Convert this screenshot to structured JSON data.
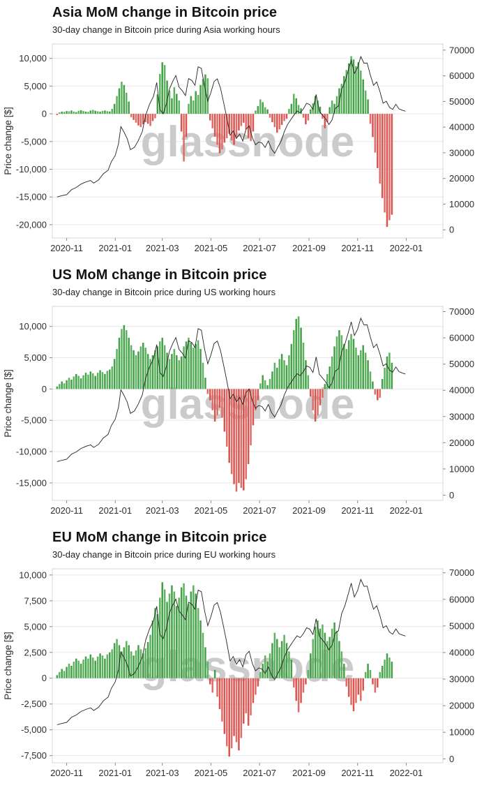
{
  "watermark": {
    "text": "glassnode",
    "color": "#cbcbcb"
  },
  "style": {
    "positive_bar": "#43a047",
    "positive_bar_alt": "#5cb35f",
    "negative_bar": "#d9534f",
    "negative_bar_alt": "#e06b67",
    "price_line": "#222222",
    "grid": "#e7e7e7",
    "plot_border": "#d4d4d4",
    "tick_mark": "#8a8a8a",
    "tick_text": "#2e2e2e",
    "background": "#ffffff"
  },
  "x_axis": {
    "domain": [
      0,
      490
    ],
    "tick_t": [
      18,
      79,
      138,
      199,
      260,
      322,
      383,
      444
    ],
    "tick_labels": [
      "2020-11",
      "2021-01",
      "2021-03",
      "2021-05",
      "2021-07",
      "2021-09",
      "2021-11",
      "2022-01"
    ]
  },
  "price_line": {
    "name": "Bitcoin price [$] (right axis, shared by all three charts)",
    "points": [
      [
        6,
        12800
      ],
      [
        12,
        13300
      ],
      [
        18,
        13700
      ],
      [
        24,
        15600
      ],
      [
        30,
        16500
      ],
      [
        36,
        17800
      ],
      [
        42,
        18600
      ],
      [
        48,
        19200
      ],
      [
        52,
        18200
      ],
      [
        58,
        19400
      ],
      [
        64,
        21800
      ],
      [
        70,
        23200
      ],
      [
        74,
        26500
      ],
      [
        79,
        29000
      ],
      [
        83,
        33500
      ],
      [
        86,
        40200
      ],
      [
        90,
        38000
      ],
      [
        94,
        35500
      ],
      [
        98,
        31200
      ],
      [
        103,
        32100
      ],
      [
        108,
        34800
      ],
      [
        113,
        38300
      ],
      [
        117,
        44500
      ],
      [
        122,
        48900
      ],
      [
        127,
        52000
      ],
      [
        131,
        57400
      ],
      [
        135,
        46800
      ],
      [
        139,
        45200
      ],
      [
        143,
        48900
      ],
      [
        147,
        54900
      ],
      [
        151,
        57800
      ],
      [
        155,
        60100
      ],
      [
        159,
        55600
      ],
      [
        163,
        54200
      ],
      [
        167,
        52300
      ],
      [
        171,
        58900
      ],
      [
        175,
        58200
      ],
      [
        179,
        56300
      ],
      [
        183,
        63500
      ],
      [
        187,
        62900
      ],
      [
        191,
        55800
      ],
      [
        195,
        50100
      ],
      [
        199,
        53500
      ],
      [
        203,
        57800
      ],
      [
        207,
        58800
      ],
      [
        211,
        55200
      ],
      [
        215,
        49500
      ],
      [
        219,
        43500
      ],
      [
        223,
        36800
      ],
      [
        227,
        38500
      ],
      [
        231,
        35600
      ],
      [
        235,
        37300
      ],
      [
        239,
        34600
      ],
      [
        243,
        39200
      ],
      [
        247,
        40500
      ],
      [
        251,
        35800
      ],
      [
        255,
        33100
      ],
      [
        259,
        34200
      ],
      [
        263,
        33800
      ],
      [
        267,
        32100
      ],
      [
        271,
        34600
      ],
      [
        275,
        31500
      ],
      [
        279,
        29800
      ],
      [
        283,
        32200
      ],
      [
        287,
        34500
      ],
      [
        291,
        38200
      ],
      [
        295,
        40900
      ],
      [
        299,
        42800
      ],
      [
        303,
        44600
      ],
      [
        307,
        46300
      ],
      [
        311,
        45600
      ],
      [
        315,
        47100
      ],
      [
        319,
        49300
      ],
      [
        323,
        48800
      ],
      [
        327,
        46800
      ],
      [
        331,
        52700
      ],
      [
        335,
        46100
      ],
      [
        339,
        44700
      ],
      [
        343,
        43200
      ],
      [
        347,
        41000
      ],
      [
        351,
        42800
      ],
      [
        355,
        47300
      ],
      [
        359,
        48200
      ],
      [
        363,
        54700
      ],
      [
        367,
        57500
      ],
      [
        371,
        61700
      ],
      [
        375,
        66100
      ],
      [
        379,
        60900
      ],
      [
        383,
        63300
      ],
      [
        387,
        67500
      ],
      [
        391,
        64900
      ],
      [
        395,
        65000
      ],
      [
        399,
        60300
      ],
      [
        403,
        56300
      ],
      [
        407,
        57600
      ],
      [
        411,
        53900
      ],
      [
        415,
        49300
      ],
      [
        419,
        50100
      ],
      [
        423,
        47700
      ],
      [
        427,
        46900
      ],
      [
        431,
        48900
      ],
      [
        435,
        47100
      ],
      [
        439,
        46600
      ],
      [
        443,
        46200
      ]
    ]
  },
  "chart_data": [
    {
      "type": "bar+line",
      "title": "Asia MoM change in Bitcoin price",
      "subtitle": "30-day change in Bitcoin price during Asia working hours",
      "ylabel": "Price change [$]",
      "bar_series_name": "30-day Bitcoin price change during Asia working hours",
      "line_series_name": "Bitcoin price (uses shared price_line.points)",
      "left_ticks": [
        10000,
        5000,
        0,
        -5000,
        -10000,
        -15000,
        -20000
      ],
      "left_tick_labels": [
        "10,000",
        "5,000",
        "0",
        "-5,000",
        "-10,000",
        "-15,000",
        "-20,000"
      ],
      "left_ylim": [
        -22400,
        12600
      ],
      "right_ticks": [
        70000,
        60000,
        50000,
        40000,
        30000,
        20000,
        10000,
        0
      ],
      "right_ylim": [
        -3200,
        72400
      ],
      "bars": {
        "t_start": 6,
        "t_step": 3,
        "values": [
          -200,
          250,
          400,
          350,
          500,
          450,
          600,
          400,
          300,
          550,
          650,
          500,
          400,
          350,
          600,
          700,
          550,
          450,
          380,
          520,
          600,
          480,
          420,
          900,
          1800,
          3200,
          4600,
          5800,
          5200,
          3800,
          2200,
          -600,
          -1100,
          -1600,
          -2100,
          -2400,
          -1900,
          -1500,
          -1800,
          -2200,
          -1300,
          -800,
          3500,
          7200,
          9300,
          8800,
          6000,
          4200,
          2800,
          4800,
          3600,
          2400,
          -3200,
          -8600,
          -4200,
          1800,
          3200,
          2400,
          4100,
          3400,
          5200,
          6300,
          7100,
          6400,
          -1200,
          -2600,
          -4100,
          -5600,
          -7100,
          -6400,
          -5200,
          -4400,
          -3600,
          -4800,
          -5600,
          -4200,
          -3000,
          -2200,
          -1600,
          -2800,
          -4400,
          -4900,
          -3200,
          600,
          1400,
          2600,
          2100,
          1200,
          800,
          -700,
          -1500,
          -2400,
          -3400,
          -2800,
          -2000,
          -1300,
          -900,
          900,
          1800,
          3600,
          2800,
          1600,
          1000,
          -700,
          -1900,
          -1200,
          800,
          1900,
          3200,
          2400,
          1300,
          -900,
          -2600,
          -1500,
          1200,
          2400,
          1800,
          3200,
          4600,
          5400,
          6800,
          7900,
          9100,
          10400,
          9800,
          8600,
          9300,
          7800,
          6200,
          4200,
          2600,
          -1800,
          -4200,
          -7000,
          -9800,
          -12600,
          -15200,
          -17800,
          -20400,
          -19200,
          -18200
        ]
      }
    },
    {
      "type": "bar+line",
      "title": "US MoM change in Bitcoin price",
      "subtitle": "30-day change in Bitcoin price during US working hours",
      "ylabel": "Price change [$]",
      "bar_series_name": "30-day Bitcoin price change during US working hours",
      "line_series_name": "Bitcoin price (uses shared price_line.points)",
      "left_ticks": [
        10000,
        5000,
        0,
        -5000,
        -10000,
        -15000
      ],
      "left_tick_labels": [
        "10,000",
        "5,000",
        "0",
        "-5,000",
        "-10,000",
        "-15,000"
      ],
      "left_ylim": [
        -17800,
        13200
      ],
      "right_ticks": [
        70000,
        60000,
        50000,
        40000,
        30000,
        20000,
        10000,
        0
      ],
      "right_ylim": [
        -2000,
        72000
      ],
      "bars": {
        "t_start": 6,
        "t_step": 3,
        "values": [
          400,
          800,
          1200,
          900,
          1400,
          1800,
          1500,
          2000,
          2400,
          2100,
          1700,
          2200,
          2600,
          2300,
          2800,
          2500,
          2100,
          2600,
          3000,
          2700,
          2400,
          2900,
          3100,
          3600,
          4800,
          6400,
          8200,
          9600,
          10200,
          9400,
          8200,
          7000,
          6200,
          5400,
          6000,
          6800,
          7400,
          6600,
          5600,
          4800,
          5400,
          6200,
          6800,
          7600,
          8200,
          7000,
          5800,
          4800,
          5600,
          6400,
          5400,
          4600,
          5200,
          6800,
          7600,
          8200,
          7400,
          6600,
          7200,
          7800,
          6400,
          4200,
          1800,
          -800,
          -1800,
          -3400,
          -5200,
          -4200,
          -3000,
          -4600,
          -6800,
          -9200,
          -11800,
          -13600,
          -15200,
          -16400,
          -15000,
          -15800,
          -16200,
          -14400,
          -12000,
          -9000,
          -5800,
          -3400,
          -1800,
          900,
          2200,
          1400,
          600,
          1600,
          2800,
          4200,
          3400,
          4800,
          5600,
          4600,
          3800,
          5400,
          7200,
          9400,
          11200,
          11600,
          9800,
          7400,
          4600,
          2200,
          -1200,
          -3400,
          -5200,
          -4200,
          -2600,
          -1400,
          800,
          2400,
          3600,
          5200,
          6800,
          8400,
          9400,
          8600,
          7200,
          6400,
          7800,
          8800,
          8000,
          6600,
          5400,
          6200,
          7000,
          5800,
          4600,
          2800,
          1200,
          -900,
          -1800,
          -1400,
          1600,
          3400,
          5200,
          5800,
          4200
        ]
      }
    },
    {
      "type": "bar+line",
      "title": "EU MoM change in Bitcoin price",
      "subtitle": "30-day change in Bitcoin price during EU working hours",
      "ylabel": "Price change [$]",
      "bar_series_name": "30-day Bitcoin price change during EU working hours",
      "line_series_name": "Bitcoin price (uses shared price_line.points)",
      "left_ticks": [
        10000,
        7500,
        5000,
        2500,
        0,
        -2500,
        -5000,
        -7500
      ],
      "left_tick_labels": [
        "10,000",
        "7,500",
        "5,000",
        "2,500",
        "0",
        "-2,500",
        "-5,000",
        "-7,500"
      ],
      "left_ylim": [
        -8200,
        10600
      ],
      "right_ticks": [
        70000,
        60000,
        50000,
        40000,
        30000,
        20000,
        10000,
        0
      ],
      "right_ylim": [
        -1500,
        71500
      ],
      "bars": {
        "t_start": 6,
        "t_step": 3,
        "values": [
          300,
          600,
          900,
          700,
          1100,
          1400,
          1200,
          1600,
          1900,
          1700,
          1400,
          1800,
          2100,
          1900,
          2300,
          2000,
          1700,
          2100,
          2400,
          2200,
          1900,
          2300,
          2500,
          2800,
          3400,
          3800,
          3200,
          2600,
          3000,
          3600,
          3200,
          2600,
          2200,
          2700,
          3200,
          2800,
          2400,
          2900,
          3500,
          4200,
          5600,
          6800,
          6200,
          7800,
          9300,
          8600,
          7400,
          8200,
          9000,
          8400,
          7000,
          7800,
          8800,
          9200,
          8000,
          7200,
          8400,
          9000,
          8200,
          6800,
          5600,
          4400,
          3000,
          1600,
          -600,
          -1400,
          800,
          -1800,
          -3000,
          -4200,
          -5400,
          -6600,
          -7600,
          -6800,
          -5600,
          -6200,
          -7000,
          -5800,
          -4400,
          -3400,
          -4600,
          -3600,
          -2400,
          -1600,
          -800,
          600,
          1400,
          2200,
          1600,
          2400,
          3400,
          4400,
          3800,
          3000,
          3600,
          4200,
          3400,
          2600,
          1800,
          -900,
          -2200,
          -3300,
          -2400,
          -1400,
          -600,
          800,
          2400,
          3800,
          5000,
          5600,
          4800,
          5200,
          4400,
          3600,
          4000,
          4800,
          5400,
          4600,
          3600,
          2600,
          1400,
          -800,
          -1800,
          -2600,
          -3200,
          -2400,
          -1600,
          -2200,
          -1200,
          600,
          1400,
          800,
          -600,
          -1400,
          -900,
          600,
          1200,
          1800,
          2400,
          2000,
          1600
        ]
      }
    }
  ]
}
